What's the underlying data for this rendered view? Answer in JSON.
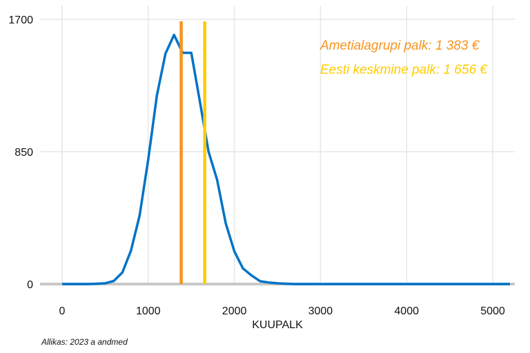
{
  "chart_data": {
    "type": "line",
    "xlabel": "KUUPALK",
    "ylabel": "",
    "xlim": [
      0,
      5200
    ],
    "ylim": [
      0,
      1700
    ],
    "x_ticks": [
      0,
      1000,
      2000,
      3000,
      4000,
      5000
    ],
    "y_ticks": [
      0,
      850,
      1700
    ],
    "grid": true,
    "series": [
      {
        "color": "#0072c6",
        "x": [
          0,
          100,
          200,
          300,
          400,
          500,
          600,
          700,
          800,
          900,
          1000,
          1100,
          1200,
          1300,
          1400,
          1500,
          1600,
          1700,
          1800,
          1900,
          2000,
          2100,
          2200,
          2300,
          2400,
          2500,
          2600,
          2700,
          2800,
          3000,
          4000,
          5200
        ],
        "y": [
          0,
          0,
          0,
          0,
          2,
          5,
          20,
          75,
          215,
          440,
          800,
          1210,
          1480,
          1600,
          1485,
          1485,
          1170,
          850,
          670,
          390,
          210,
          100,
          55,
          18,
          10,
          5,
          2,
          0,
          0,
          0,
          0,
          0
        ]
      }
    ],
    "reference_lines": [
      {
        "x": 1383,
        "color": "#f7941d",
        "label": "Ametialagrupi palk: 1 383 €"
      },
      {
        "x": 1656,
        "color": "#ffcc00",
        "label": "Eesti keskmine palk: 1 656 €"
      }
    ]
  },
  "source": "Allikas: 2023 a andmed"
}
